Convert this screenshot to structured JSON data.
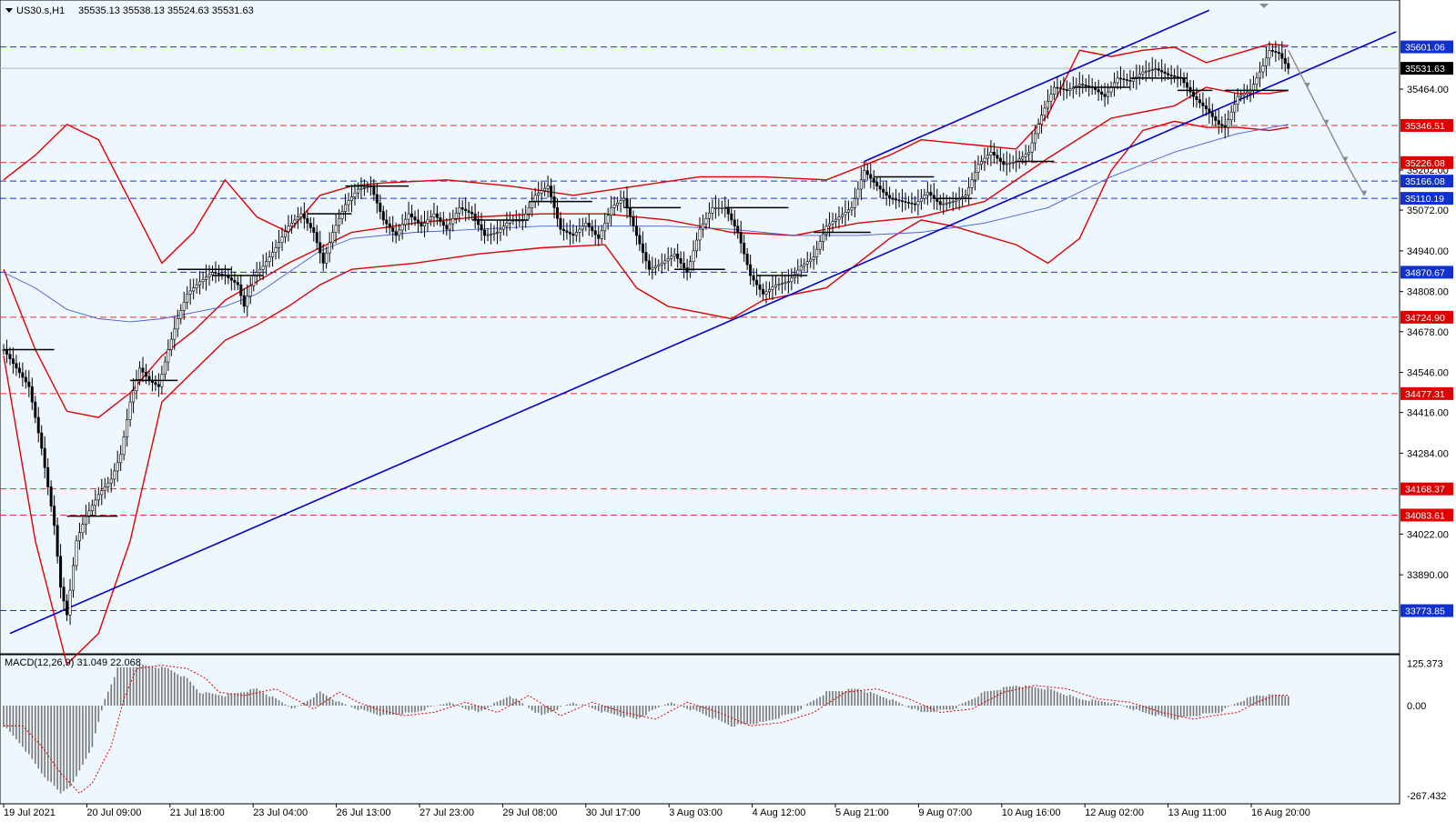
{
  "window": {
    "symbol_line": "US30.s,H1",
    "ohlc": "35535.13 35538.13 35524.63 35531.63"
  },
  "colors": {
    "background": "#eef7fd",
    "bull_bear_candle": "#000000",
    "bollinger": "#e00000",
    "trendline": "#0000c8",
    "ma": "#4a5ad8",
    "support_line": "#e03030",
    "resistance_line": "#2030d0",
    "forecast_arrow": "#8a8a8a",
    "macd_hist": "#777777",
    "macd_signal": "#e00000"
  },
  "icons": [
    "collapse-triangle-icon"
  ],
  "chart_data": {
    "type": "line",
    "title": "US30.s,H1",
    "ylim": [
      33690,
      35700
    ],
    "price_ticks": [
      "35464.00",
      "35202.00",
      "35072.00",
      "34940.00",
      "34808.00",
      "34678.00",
      "34546.00",
      "34416.00",
      "34284.00",
      "34022.00",
      "33890.00"
    ],
    "current_price": "35531.63",
    "level_tags": [
      {
        "label": "35601.06",
        "kind": "resistance"
      },
      {
        "label": "35346.51",
        "kind": "support"
      },
      {
        "label": "35226.08",
        "kind": "support"
      },
      {
        "label": "35166.08",
        "kind": "resistance"
      },
      {
        "label": "35110.19",
        "kind": "resistance"
      },
      {
        "label": "34870.67",
        "kind": "resistance"
      },
      {
        "label": "34724.90",
        "kind": "support"
      },
      {
        "label": "34477.31",
        "kind": "support"
      },
      {
        "label": "34168.37",
        "kind": "support"
      },
      {
        "label": "34083.61",
        "kind": "support"
      },
      {
        "label": "33773.85",
        "kind": "resistance"
      }
    ],
    "x_labels": [
      "19 Jul 2021",
      "20 Jul 09:00",
      "21 Jul 18:00",
      "23 Jul 04:00",
      "26 Jul 13:00",
      "27 Jul 23:00",
      "29 Jul 08:00",
      "30 Jul 17:00",
      "3 Aug 03:00",
      "4 Aug 12:00",
      "5 Aug 21:00",
      "9 Aug 07:00",
      "10 Aug 16:00",
      "12 Aug 02:00",
      "13 Aug 11:00",
      "16 Aug 20:00"
    ],
    "price_path": [
      [
        0,
        34620
      ],
      [
        4,
        34560
      ],
      [
        8,
        34500
      ],
      [
        12,
        34300
      ],
      [
        16,
        34050
      ],
      [
        18,
        33850
      ],
      [
        20,
        33760
      ],
      [
        23,
        34000
      ],
      [
        26,
        34080
      ],
      [
        30,
        34150
      ],
      [
        34,
        34200
      ],
      [
        37,
        34280
      ],
      [
        40,
        34450
      ],
      [
        43,
        34560
      ],
      [
        46,
        34520
      ],
      [
        49,
        34500
      ],
      [
        52,
        34620
      ],
      [
        55,
        34720
      ],
      [
        58,
        34800
      ],
      [
        62,
        34840
      ],
      [
        66,
        34870
      ],
      [
        70,
        34860
      ],
      [
        74,
        34830
      ],
      [
        76,
        34760
      ],
      [
        79,
        34860
      ],
      [
        82,
        34890
      ],
      [
        86,
        34950
      ],
      [
        90,
        35020
      ],
      [
        94,
        35060
      ],
      [
        98,
        35000
      ],
      [
        101,
        34900
      ],
      [
        104,
        35000
      ],
      [
        108,
        35090
      ],
      [
        112,
        35140
      ],
      [
        116,
        35150
      ],
      [
        120,
        35040
      ],
      [
        124,
        34990
      ],
      [
        128,
        35060
      ],
      [
        132,
        35020
      ],
      [
        136,
        35060
      ],
      [
        140,
        35010
      ],
      [
        144,
        35080
      ],
      [
        148,
        35060
      ],
      [
        152,
        34990
      ],
      [
        156,
        35000
      ],
      [
        160,
        35040
      ],
      [
        164,
        35040
      ],
      [
        168,
        35120
      ],
      [
        172,
        35150
      ],
      [
        176,
        35010
      ],
      [
        180,
        34990
      ],
      [
        184,
        35030
      ],
      [
        188,
        34980
      ],
      [
        192,
        35080
      ],
      [
        196,
        35110
      ],
      [
        200,
        34990
      ],
      [
        204,
        34880
      ],
      [
        208,
        34900
      ],
      [
        212,
        34930
      ],
      [
        216,
        34870
      ],
      [
        220,
        35010
      ],
      [
        224,
        35080
      ],
      [
        228,
        35080
      ],
      [
        232,
        35000
      ],
      [
        236,
        34860
      ],
      [
        240,
        34800
      ],
      [
        244,
        34830
      ],
      [
        248,
        34840
      ],
      [
        252,
        34890
      ],
      [
        256,
        34920
      ],
      [
        260,
        35020
      ],
      [
        264,
        35050
      ],
      [
        268,
        35080
      ],
      [
        272,
        35200
      ],
      [
        276,
        35150
      ],
      [
        280,
        35110
      ],
      [
        284,
        35100
      ],
      [
        288,
        35090
      ],
      [
        292,
        35130
      ],
      [
        296,
        35090
      ],
      [
        300,
        35100
      ],
      [
        304,
        35120
      ],
      [
        308,
        35220
      ],
      [
        312,
        35260
      ],
      [
        316,
        35220
      ],
      [
        320,
        35230
      ],
      [
        324,
        35260
      ],
      [
        328,
        35380
      ],
      [
        332,
        35470
      ],
      [
        336,
        35460
      ],
      [
        340,
        35480
      ],
      [
        344,
        35470
      ],
      [
        348,
        35440
      ],
      [
        352,
        35500
      ],
      [
        356,
        35490
      ],
      [
        360,
        35520
      ],
      [
        364,
        35530
      ],
      [
        368,
        35510
      ],
      [
        372,
        35500
      ],
      [
        376,
        35440
      ],
      [
        380,
        35400
      ],
      [
        384,
        35350
      ],
      [
        386,
        35340
      ],
      [
        390,
        35440
      ],
      [
        394,
        35460
      ],
      [
        398,
        35540
      ],
      [
        400,
        35590
      ],
      [
        403,
        35580
      ],
      [
        406,
        35531
      ]
    ],
    "bollinger_upper": [
      [
        0,
        35170
      ],
      [
        10,
        35250
      ],
      [
        20,
        35350
      ],
      [
        30,
        35300
      ],
      [
        40,
        35100
      ],
      [
        50,
        34900
      ],
      [
        60,
        35000
      ],
      [
        70,
        35170
      ],
      [
        80,
        35050
      ],
      [
        90,
        35000
      ],
      [
        100,
        35120
      ],
      [
        110,
        35150
      ],
      [
        120,
        35160
      ],
      [
        140,
        35170
      ],
      [
        160,
        35150
      ],
      [
        180,
        35120
      ],
      [
        200,
        35150
      ],
      [
        220,
        35180
      ],
      [
        240,
        35180
      ],
      [
        260,
        35170
      ],
      [
        280,
        35250
      ],
      [
        290,
        35300
      ],
      [
        300,
        35290
      ],
      [
        310,
        35280
      ],
      [
        320,
        35270
      ],
      [
        330,
        35380
      ],
      [
        340,
        35590
      ],
      [
        350,
        35570
      ],
      [
        360,
        35590
      ],
      [
        370,
        35600
      ],
      [
        380,
        35550
      ],
      [
        390,
        35580
      ],
      [
        400,
        35610
      ],
      [
        406,
        35605
      ]
    ],
    "bollinger_mid": [
      [
        0,
        34880
      ],
      [
        10,
        34620
      ],
      [
        20,
        34420
      ],
      [
        30,
        34400
      ],
      [
        40,
        34480
      ],
      [
        50,
        34600
      ],
      [
        60,
        34680
      ],
      [
        70,
        34780
      ],
      [
        80,
        34840
      ],
      [
        90,
        34900
      ],
      [
        100,
        34950
      ],
      [
        110,
        35000
      ],
      [
        130,
        35030
      ],
      [
        150,
        35050
      ],
      [
        170,
        35060
      ],
      [
        190,
        35060
      ],
      [
        210,
        35040
      ],
      [
        230,
        35000
      ],
      [
        250,
        34990
      ],
      [
        270,
        35030
      ],
      [
        290,
        35050
      ],
      [
        310,
        35100
      ],
      [
        330,
        35240
      ],
      [
        350,
        35370
      ],
      [
        370,
        35410
      ],
      [
        380,
        35470
      ],
      [
        390,
        35450
      ],
      [
        400,
        35450
      ],
      [
        406,
        35460
      ]
    ],
    "bollinger_lower": [
      [
        0,
        34600
      ],
      [
        10,
        34000
      ],
      [
        20,
        33600
      ],
      [
        30,
        33700
      ],
      [
        40,
        34000
      ],
      [
        50,
        34450
      ],
      [
        60,
        34550
      ],
      [
        70,
        34650
      ],
      [
        80,
        34700
      ],
      [
        90,
        34760
      ],
      [
        100,
        34830
      ],
      [
        110,
        34880
      ],
      [
        130,
        34900
      ],
      [
        150,
        34930
      ],
      [
        170,
        34950
      ],
      [
        190,
        34960
      ],
      [
        200,
        34820
      ],
      [
        210,
        34760
      ],
      [
        220,
        34740
      ],
      [
        230,
        34720
      ],
      [
        240,
        34780
      ],
      [
        260,
        34820
      ],
      [
        280,
        34980
      ],
      [
        290,
        35040
      ],
      [
        300,
        35020
      ],
      [
        310,
        34990
      ],
      [
        320,
        34960
      ],
      [
        330,
        34900
      ],
      [
        340,
        34980
      ],
      [
        350,
        35200
      ],
      [
        360,
        35330
      ],
      [
        370,
        35360
      ],
      [
        380,
        35340
      ],
      [
        390,
        35340
      ],
      [
        400,
        35330
      ],
      [
        406,
        35340
      ]
    ],
    "ma_line": [
      [
        0,
        34870
      ],
      [
        10,
        34820
      ],
      [
        20,
        34750
      ],
      [
        30,
        34720
      ],
      [
        40,
        34710
      ],
      [
        50,
        34720
      ],
      [
        60,
        34740
      ],
      [
        70,
        34760
      ],
      [
        80,
        34800
      ],
      [
        90,
        34870
      ],
      [
        100,
        34940
      ],
      [
        110,
        34980
      ],
      [
        130,
        35000
      ],
      [
        150,
        35010
      ],
      [
        170,
        35020
      ],
      [
        190,
        35020
      ],
      [
        210,
        35020
      ],
      [
        230,
        35010
      ],
      [
        250,
        34990
      ],
      [
        270,
        34990
      ],
      [
        290,
        35000
      ],
      [
        310,
        35030
      ],
      [
        330,
        35080
      ],
      [
        350,
        35180
      ],
      [
        370,
        35260
      ],
      [
        390,
        35320
      ],
      [
        406,
        35350
      ]
    ],
    "macd": {
      "label": "MACD(12,26,9) 31.049 22.068",
      "ticks": [
        "125.373",
        "0.00",
        "-267.432"
      ],
      "ylim": [
        -275,
        135
      ],
      "hist_knots": [
        [
          0,
          -60
        ],
        [
          6,
          -120
        ],
        [
          12,
          -200
        ],
        [
          18,
          -260
        ],
        [
          22,
          -230
        ],
        [
          28,
          -120
        ],
        [
          32,
          20
        ],
        [
          36,
          110
        ],
        [
          44,
          120
        ],
        [
          52,
          110
        ],
        [
          58,
          80
        ],
        [
          62,
          40
        ],
        [
          70,
          30
        ],
        [
          80,
          50
        ],
        [
          86,
          20
        ],
        [
          92,
          -10
        ],
        [
          100,
          40
        ],
        [
          106,
          10
        ],
        [
          112,
          -10
        ],
        [
          120,
          -30
        ],
        [
          130,
          -20
        ],
        [
          140,
          10
        ],
        [
          150,
          -20
        ],
        [
          160,
          30
        ],
        [
          170,
          -30
        ],
        [
          180,
          10
        ],
        [
          190,
          -20
        ],
        [
          200,
          -40
        ],
        [
          210,
          10
        ],
        [
          220,
          -20
        ],
        [
          230,
          -60
        ],
        [
          240,
          -50
        ],
        [
          250,
          -20
        ],
        [
          260,
          40
        ],
        [
          270,
          50
        ],
        [
          280,
          20
        ],
        [
          290,
          -20
        ],
        [
          300,
          -10
        ],
        [
          310,
          40
        ],
        [
          320,
          60
        ],
        [
          330,
          50
        ],
        [
          340,
          20
        ],
        [
          350,
          10
        ],
        [
          360,
          -20
        ],
        [
          370,
          -40
        ],
        [
          376,
          -30
        ],
        [
          384,
          -20
        ],
        [
          390,
          10
        ],
        [
          396,
          31
        ],
        [
          406,
          31
        ]
      ]
    }
  }
}
